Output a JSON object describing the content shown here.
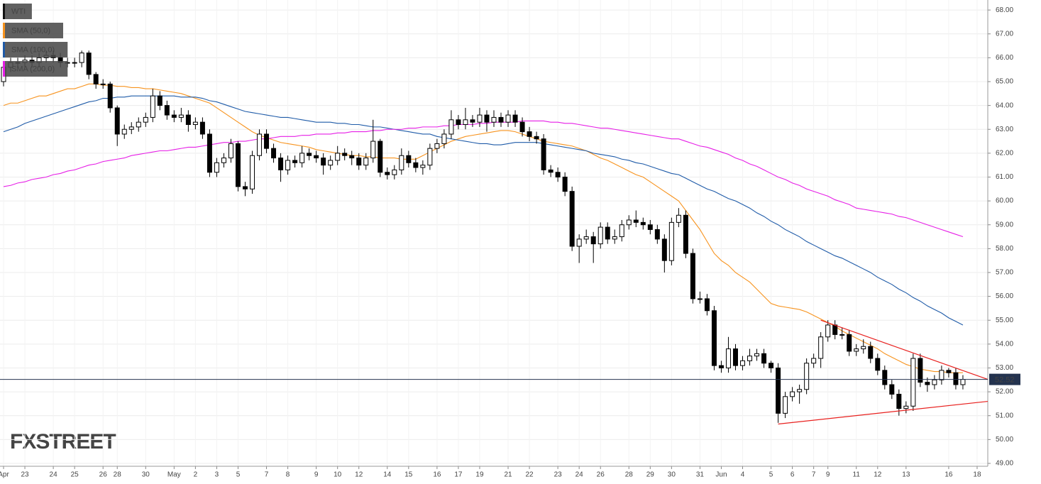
{
  "chart_data": {
    "type": "candlestick",
    "watermark": "FXSTREET",
    "ylim": [
      48.88,
      68.42
    ],
    "yticks": [
      {
        "value": 49,
        "label": "49.00"
      },
      {
        "value": 50,
        "label": "50.00"
      },
      {
        "value": 51,
        "label": "51.00"
      },
      {
        "value": 52,
        "label": "52.00"
      },
      {
        "value": 53,
        "label": "53.00"
      },
      {
        "value": 54,
        "label": "54.00"
      },
      {
        "value": 55,
        "label": "55.00"
      },
      {
        "value": 56,
        "label": "56.00"
      },
      {
        "value": 57,
        "label": "57.00"
      },
      {
        "value": 58,
        "label": "58.00"
      },
      {
        "value": 59,
        "label": "59.00"
      },
      {
        "value": 60,
        "label": "60.00"
      },
      {
        "value": 61,
        "label": "61.00"
      },
      {
        "value": 62,
        "label": "62.00"
      },
      {
        "value": 63,
        "label": "63.00"
      },
      {
        "value": 64,
        "label": "64.00"
      },
      {
        "value": 65,
        "label": "65.00"
      },
      {
        "value": 66,
        "label": "66.00"
      },
      {
        "value": 67,
        "label": "67.00"
      },
      {
        "value": 68,
        "label": "68.00"
      }
    ],
    "grid": true,
    "last_price": 52.52,
    "last_price_color": "#24334f",
    "categories": [
      "Apr",
      null,
      null,
      "23",
      null,
      null,
      null,
      "24",
      null,
      null,
      "25",
      null,
      null,
      null,
      "26",
      null,
      "28",
      null,
      null,
      null,
      "30",
      null,
      null,
      null,
      "May",
      null,
      null,
      "2",
      null,
      null,
      "3",
      null,
      null,
      "5",
      null,
      null,
      null,
      "7",
      null,
      null,
      "8",
      null,
      null,
      null,
      "9",
      null,
      null,
      "10",
      null,
      null,
      "12",
      null,
      null,
      null,
      "14",
      null,
      null,
      "15",
      null,
      null,
      null,
      "16",
      null,
      null,
      "17",
      null,
      null,
      "19",
      null,
      null,
      null,
      "21",
      null,
      null,
      "22",
      null,
      null,
      null,
      "23",
      null,
      null,
      "24",
      null,
      null,
      "26",
      null,
      null,
      null,
      "28",
      null,
      null,
      "29",
      null,
      null,
      "30",
      null,
      null,
      null,
      "31",
      null,
      null,
      "Jun",
      null,
      null,
      "4",
      null,
      null,
      null,
      "5",
      null,
      null,
      "6",
      null,
      null,
      "7",
      null,
      "9",
      null,
      null,
      null,
      "11",
      null,
      null,
      "12",
      null,
      null,
      null,
      "13",
      null,
      null,
      null,
      null,
      null,
      "16",
      null,
      null,
      null,
      "18",
      null
    ],
    "series": [
      {
        "name": "WTI",
        "color": "#000000",
        "open": [
          65.0,
          65.6,
          65.8,
          65.8,
          65.9,
          65.8,
          66.0,
          66.1,
          66.0,
          65.8,
          65.8,
          65.8,
          66.2,
          65.3,
          64.9,
          64.9,
          63.9,
          62.8,
          63.0,
          63.1,
          63.3,
          63.5,
          64.4,
          64.0,
          63.6,
          63.5,
          63.6,
          63.2,
          63.3,
          62.8,
          61.2,
          61.6,
          61.8,
          62.4,
          60.6,
          60.5,
          61.9,
          62.8,
          62.2,
          61.8,
          61.3,
          61.7,
          61.6,
          62.0,
          61.9,
          61.8,
          61.5,
          61.7,
          62.0,
          61.9,
          61.8,
          61.5,
          61.8,
          62.5,
          61.2,
          61.1,
          61.3,
          61.9,
          61.6,
          61.4,
          61.5,
          62.2,
          62.4,
          62.8,
          63.4,
          63.2,
          63.4,
          63.3,
          63.6,
          63.3,
          63.5,
          63.3,
          63.6,
          63.3,
          62.9,
          62.7,
          62.6,
          61.3,
          61.2,
          61.0,
          60.4,
          58.1,
          58.4,
          58.5,
          58.2,
          58.9,
          58.4,
          58.5,
          59.0,
          59.2,
          59.1,
          59.0,
          58.8,
          58.4,
          57.5,
          59.1,
          59.4,
          57.8,
          55.9,
          55.9,
          55.4,
          53.1,
          53.0,
          53.8,
          53.1,
          53.3,
          53.5,
          53.6,
          53.2,
          53.0,
          51.1,
          51.8,
          52.0,
          52.1,
          53.2,
          53.4,
          54.3,
          54.8,
          54.4,
          54.4,
          53.7,
          53.8,
          53.9,
          53.4,
          52.9,
          52.3,
          51.9,
          51.3,
          51.4,
          53.4,
          52.4,
          52.3,
          52.5,
          52.9,
          52.8,
          52.3,
          null,
          null,
          null
        ],
        "high": [
          65.8,
          66.0,
          66.0,
          66.1,
          66.1,
          66.2,
          66.3,
          66.3,
          66.2,
          66.0,
          66.0,
          66.3,
          66.3,
          65.4,
          65.1,
          65.0,
          64.0,
          63.2,
          63.3,
          63.5,
          63.7,
          64.7,
          64.6,
          64.2,
          63.8,
          63.9,
          63.8,
          63.5,
          63.5,
          63.0,
          61.8,
          62.0,
          62.6,
          62.5,
          60.8,
          62.1,
          63.0,
          63.0,
          62.4,
          62.0,
          61.9,
          61.9,
          62.3,
          62.2,
          62.1,
          62.0,
          61.9,
          62.3,
          62.2,
          62.1,
          62.0,
          62.0,
          63.4,
          62.6,
          61.4,
          61.5,
          62.2,
          62.1,
          61.8,
          61.7,
          62.4,
          62.6,
          63.0,
          63.8,
          63.6,
          63.9,
          63.6,
          63.9,
          63.8,
          63.8,
          63.7,
          63.8,
          63.8,
          63.5,
          63.1,
          62.9,
          62.8,
          61.5,
          61.4,
          61.2,
          60.6,
          58.6,
          58.8,
          58.7,
          59.1,
          59.1,
          58.8,
          59.2,
          59.4,
          59.6,
          59.3,
          59.2,
          59.0,
          58.6,
          59.3,
          59.7,
          59.6,
          58.0,
          56.2,
          56.1,
          55.6,
          53.3,
          54.3,
          54.0,
          53.5,
          53.8,
          53.8,
          53.8,
          53.3,
          53.2,
          52.0,
          52.2,
          52.3,
          53.4,
          53.6,
          54.5,
          55.0,
          55.0,
          54.7,
          54.6,
          54.0,
          54.2,
          54.1,
          53.6,
          53.1,
          52.5,
          52.1,
          51.6,
          53.6,
          53.6,
          52.6,
          52.7,
          53.1,
          53.0,
          53.0,
          52.7,
          null,
          null,
          null
        ],
        "low": [
          64.8,
          65.4,
          65.6,
          65.6,
          65.6,
          65.6,
          65.8,
          65.8,
          65.6,
          65.6,
          65.6,
          65.6,
          65.1,
          64.7,
          64.7,
          63.7,
          62.3,
          62.6,
          62.8,
          62.9,
          63.1,
          63.3,
          63.8,
          63.4,
          63.3,
          63.3,
          62.9,
          63.0,
          62.6,
          61.0,
          61.0,
          61.4,
          61.6,
          60.4,
          60.2,
          60.3,
          61.7,
          62.0,
          61.6,
          60.8,
          61.1,
          61.4,
          61.4,
          61.7,
          61.6,
          61.1,
          61.3,
          61.5,
          61.7,
          61.5,
          61.3,
          61.3,
          61.6,
          61.0,
          60.9,
          60.9,
          61.1,
          61.4,
          61.2,
          61.1,
          61.3,
          62.0,
          62.2,
          62.6,
          63.0,
          63.0,
          63.1,
          63.1,
          62.9,
          63.1,
          63.1,
          63.1,
          63.1,
          62.7,
          62.5,
          62.4,
          61.1,
          61.0,
          60.8,
          60.2,
          57.9,
          57.4,
          58.2,
          57.4,
          58.0,
          58.2,
          58.2,
          58.3,
          58.8,
          58.9,
          58.8,
          58.6,
          58.2,
          57.0,
          57.3,
          58.9,
          57.6,
          55.7,
          55.7,
          55.2,
          52.9,
          52.8,
          52.8,
          52.9,
          52.9,
          53.1,
          53.3,
          53.0,
          52.8,
          50.7,
          50.9,
          51.6,
          51.5,
          51.9,
          53.0,
          53.0,
          54.1,
          54.2,
          54.2,
          53.5,
          53.5,
          53.6,
          53.2,
          52.7,
          52.1,
          51.7,
          51.0,
          51.1,
          51.2,
          52.2,
          52.0,
          52.1,
          52.3,
          52.6,
          52.1,
          52.1,
          null,
          null,
          null
        ],
        "close": [
          65.6,
          65.8,
          65.8,
          65.9,
          65.8,
          66.0,
          66.1,
          66.0,
          65.8,
          65.8,
          65.8,
          66.2,
          65.3,
          64.9,
          64.9,
          63.9,
          62.8,
          63.0,
          63.1,
          63.3,
          63.5,
          64.4,
          64.0,
          63.6,
          63.5,
          63.6,
          63.2,
          63.3,
          62.8,
          61.2,
          61.6,
          61.8,
          62.4,
          60.6,
          60.5,
          61.9,
          62.8,
          62.2,
          61.8,
          61.3,
          61.7,
          61.6,
          62.0,
          61.9,
          61.8,
          61.5,
          61.7,
          62.0,
          61.9,
          61.8,
          61.5,
          61.8,
          62.5,
          61.2,
          61.1,
          61.3,
          61.9,
          61.6,
          61.4,
          61.5,
          62.2,
          62.4,
          62.8,
          63.4,
          63.2,
          63.4,
          63.3,
          63.6,
          63.3,
          63.5,
          63.3,
          63.6,
          63.3,
          62.9,
          62.7,
          62.6,
          61.3,
          61.2,
          61.0,
          60.4,
          58.1,
          58.4,
          58.5,
          58.2,
          58.9,
          58.4,
          58.5,
          59.0,
          59.2,
          59.1,
          59.0,
          58.8,
          58.4,
          57.5,
          59.1,
          59.4,
          57.8,
          55.9,
          55.9,
          55.4,
          53.1,
          53.0,
          53.8,
          53.1,
          53.3,
          53.5,
          53.6,
          53.2,
          53.0,
          51.1,
          51.8,
          52.0,
          52.1,
          53.2,
          53.4,
          54.3,
          54.8,
          54.4,
          54.4,
          53.7,
          53.8,
          53.9,
          53.4,
          52.9,
          52.3,
          51.9,
          51.3,
          51.4,
          53.4,
          52.4,
          52.3,
          52.5,
          52.9,
          52.8,
          52.3,
          52.52,
          null,
          null,
          null
        ]
      },
      {
        "name": "SMA (50,0)",
        "color": "#f7931e",
        "values": [
          64.0,
          64.1,
          64.1,
          64.2,
          64.3,
          64.4,
          64.4,
          64.5,
          64.6,
          64.7,
          64.7,
          64.8,
          64.9,
          64.9,
          64.85,
          64.85,
          64.8,
          64.8,
          64.75,
          64.75,
          64.7,
          64.7,
          64.65,
          64.6,
          64.55,
          64.5,
          64.4,
          64.3,
          64.2,
          64.1,
          63.9,
          63.7,
          63.5,
          63.3,
          63.1,
          62.9,
          62.75,
          62.65,
          62.55,
          62.45,
          62.4,
          62.35,
          62.3,
          62.25,
          62.15,
          62.1,
          62.05,
          62.0,
          61.95,
          61.9,
          61.9,
          61.85,
          61.85,
          61.8,
          61.8,
          61.8,
          61.75,
          61.75,
          61.75,
          61.9,
          62.05,
          62.2,
          62.35,
          62.5,
          62.6,
          62.7,
          62.75,
          62.8,
          62.85,
          62.9,
          62.95,
          62.95,
          62.9,
          62.8,
          62.7,
          62.6,
          62.5,
          62.45,
          62.4,
          62.35,
          62.3,
          62.2,
          62.1,
          61.95,
          61.8,
          61.7,
          61.55,
          61.4,
          61.25,
          61.1,
          61.0,
          60.8,
          60.6,
          60.4,
          60.2,
          60.0,
          59.6,
          59.2,
          58.8,
          58.3,
          57.8,
          57.5,
          57.3,
          57.0,
          56.8,
          56.6,
          56.3,
          56.0,
          55.7,
          55.6,
          55.55,
          55.5,
          55.45,
          55.35,
          55.2,
          55.05,
          54.9,
          54.75,
          54.55,
          54.4,
          54.25,
          54.1,
          53.95,
          53.8,
          53.6,
          53.45,
          53.3,
          53.15,
          53.05,
          52.95,
          52.9,
          52.85,
          52.85,
          52.8,
          52.8,
          52.8,
          null,
          null,
          null
        ]
      },
      {
        "name": "SMA (100,0)",
        "color": "#1f5ba8",
        "values": [
          62.9,
          63.0,
          63.1,
          63.25,
          63.35,
          63.45,
          63.55,
          63.65,
          63.75,
          63.85,
          63.95,
          64.05,
          64.15,
          64.2,
          64.3,
          64.3,
          64.35,
          64.35,
          64.4,
          64.4,
          64.4,
          64.4,
          64.4,
          64.4,
          64.4,
          64.35,
          64.35,
          64.35,
          64.3,
          64.2,
          64.15,
          64.05,
          63.95,
          63.85,
          63.75,
          63.7,
          63.65,
          63.6,
          63.55,
          63.5,
          63.5,
          63.45,
          63.4,
          63.35,
          63.3,
          63.3,
          63.3,
          63.25,
          63.25,
          63.2,
          63.2,
          63.15,
          63.1,
          63.1,
          63.05,
          63.0,
          62.95,
          62.9,
          62.85,
          62.8,
          62.8,
          62.7,
          62.65,
          62.6,
          62.55,
          62.5,
          62.45,
          62.4,
          62.4,
          62.35,
          62.35,
          62.4,
          62.45,
          62.45,
          62.45,
          62.45,
          62.4,
          62.35,
          62.3,
          62.25,
          62.2,
          62.15,
          62.1,
          62.0,
          61.95,
          61.9,
          61.85,
          61.75,
          61.7,
          61.6,
          61.55,
          61.45,
          61.35,
          61.25,
          61.15,
          61.1,
          60.95,
          60.8,
          60.65,
          60.5,
          60.4,
          60.25,
          60.1,
          60.0,
          59.85,
          59.7,
          59.5,
          59.35,
          59.15,
          59.0,
          58.8,
          58.65,
          58.5,
          58.3,
          58.15,
          58.0,
          57.85,
          57.7,
          57.6,
          57.45,
          57.3,
          57.15,
          57.0,
          56.8,
          56.65,
          56.5,
          56.3,
          56.15,
          55.95,
          55.8,
          55.6,
          55.45,
          55.3,
          55.1,
          54.95,
          54.8,
          null,
          null,
          null
        ]
      },
      {
        "name": "SMA (200,0)",
        "color": "#e61ee6",
        "values": [
          60.6,
          60.65,
          60.75,
          60.8,
          60.9,
          60.95,
          61.0,
          61.1,
          61.15,
          61.25,
          61.3,
          61.4,
          61.5,
          61.55,
          61.65,
          61.7,
          61.75,
          61.8,
          61.9,
          61.95,
          62.0,
          62.05,
          62.1,
          62.1,
          62.15,
          62.2,
          62.25,
          62.25,
          62.3,
          62.35,
          62.4,
          62.45,
          62.45,
          62.5,
          62.5,
          62.55,
          62.6,
          62.6,
          62.65,
          62.7,
          62.7,
          62.7,
          62.75,
          62.75,
          62.8,
          62.8,
          62.8,
          62.85,
          62.85,
          62.9,
          62.9,
          62.9,
          62.95,
          62.95,
          63.0,
          63.0,
          63.0,
          63.05,
          63.05,
          63.1,
          63.1,
          63.1,
          63.15,
          63.15,
          63.2,
          63.2,
          63.2,
          63.25,
          63.25,
          63.3,
          63.3,
          63.3,
          63.3,
          63.35,
          63.35,
          63.35,
          63.35,
          63.3,
          63.3,
          63.25,
          63.25,
          63.2,
          63.15,
          63.1,
          63.05,
          63.05,
          63.0,
          62.95,
          62.9,
          62.85,
          62.8,
          62.75,
          62.7,
          62.65,
          62.6,
          62.6,
          62.5,
          62.4,
          62.3,
          62.25,
          62.15,
          62.05,
          61.95,
          61.8,
          61.7,
          61.55,
          61.45,
          61.3,
          61.15,
          61.0,
          60.9,
          60.75,
          60.65,
          60.5,
          60.4,
          60.3,
          60.2,
          60.05,
          59.95,
          59.85,
          59.7,
          59.65,
          59.6,
          59.55,
          59.5,
          59.45,
          59.35,
          59.3,
          59.2,
          59.1,
          59.0,
          58.9,
          58.8,
          58.7,
          58.6,
          58.5,
          null,
          null,
          null
        ]
      }
    ],
    "trendlines": [
      {
        "color": "#e8201e",
        "x": [
          115.5,
          139
        ],
        "values": [
          55.0,
          52.52
        ]
      },
      {
        "color": "#e8201e",
        "x": [
          109.5,
          139
        ],
        "values": [
          50.65,
          51.6
        ]
      }
    ]
  }
}
